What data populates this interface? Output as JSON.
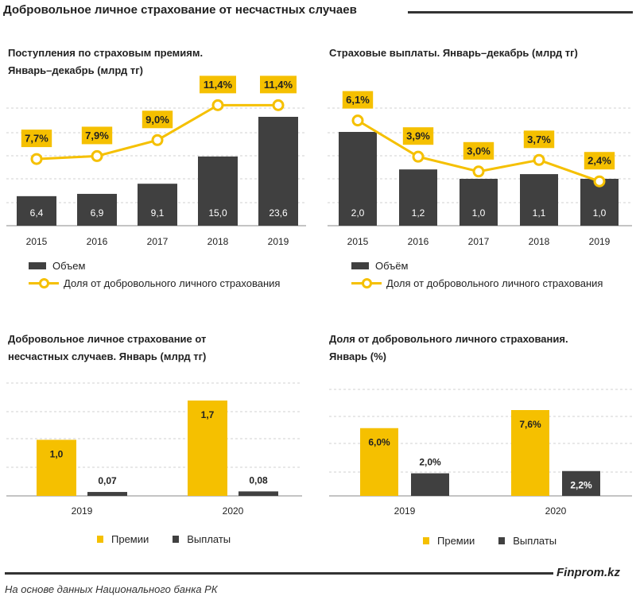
{
  "page_title": "Добровольное личное страхование от несчастных случаев",
  "source": "На основе данных Национального банка РК",
  "brand": "Finprom.kz",
  "colors": {
    "bar_dark": "#404040",
    "accent": "#f5c000",
    "grid": "#d0d0d0",
    "label_bg": "#f5c000"
  },
  "panels": [
    {
      "title": "Поступления  по страховым  премиям.\nЯнварь–декабрь  (млрд тг)",
      "legend": {
        "bar": "Объем",
        "line": "Доля от добровольного личного страхования"
      }
    },
    {
      "title": "Страховые  выплаты.  Январь–декабрь  (млрд тг)",
      "legend": {
        "bar": "Объём",
        "line": "Доля от добровольного личного страхования"
      }
    },
    {
      "title": "Добровольное  личное страхование  от\nнесчастных  случаев.  Январь  (млрд тг)",
      "legend": {
        "a": "Премии",
        "b": "Выплаты"
      }
    },
    {
      "title": "Доля от добровольного  личного  страхования.\nЯнварь  (%)",
      "legend": {
        "a": "Премии",
        "b": "Выплаты"
      }
    }
  ],
  "chart_data": [
    {
      "type": "bar",
      "categories": [
        "2015",
        "2016",
        "2017",
        "2018",
        "2019"
      ],
      "series": [
        {
          "name": "Объем",
          "type": "bar",
          "values": [
            6.4,
            6.9,
            9.1,
            15.0,
            23.6
          ],
          "labels": [
            "6,4",
            "6,9",
            "9,1",
            "15,0",
            "23,6"
          ]
        },
        {
          "name": "Доля от добровольного личного страхования",
          "type": "line",
          "unit": "%",
          "values": [
            7.7,
            7.9,
            9.0,
            11.4,
            11.4
          ],
          "labels": [
            "7,7%",
            "7,9%",
            "9,0%",
            "11,4%",
            "11,4%"
          ]
        }
      ]
    },
    {
      "type": "bar",
      "categories": [
        "2015",
        "2016",
        "2017",
        "2018",
        "2019"
      ],
      "series": [
        {
          "name": "Объём",
          "type": "bar",
          "values": [
            2.0,
            1.2,
            1.0,
            1.1,
            1.0
          ],
          "labels": [
            "2,0",
            "1,2",
            "1,0",
            "1,1",
            "1,0"
          ]
        },
        {
          "name": "Доля от добровольного личного страхования",
          "type": "line",
          "unit": "%",
          "values": [
            6.1,
            3.9,
            3.0,
            3.7,
            2.4
          ],
          "labels": [
            "6,1%",
            "3,9%",
            "3,0%",
            "3,7%",
            "2,4%"
          ]
        }
      ]
    },
    {
      "type": "bar",
      "categories": [
        "2019",
        "2020"
      ],
      "series": [
        {
          "name": "Премии",
          "values": [
            1.0,
            1.7
          ],
          "labels": [
            "1,0",
            "1,7"
          ]
        },
        {
          "name": "Выплаты",
          "values": [
            0.07,
            0.08
          ],
          "labels": [
            "0,07",
            "0,08"
          ]
        }
      ]
    },
    {
      "type": "bar",
      "categories": [
        "2019",
        "2020"
      ],
      "series": [
        {
          "name": "Премии",
          "values": [
            6.0,
            7.6
          ],
          "labels": [
            "6,0%",
            "7,6%"
          ]
        },
        {
          "name": "Выплаты",
          "values": [
            2.0,
            2.2
          ],
          "labels": [
            "2,0%",
            "2,2%"
          ]
        }
      ]
    }
  ]
}
